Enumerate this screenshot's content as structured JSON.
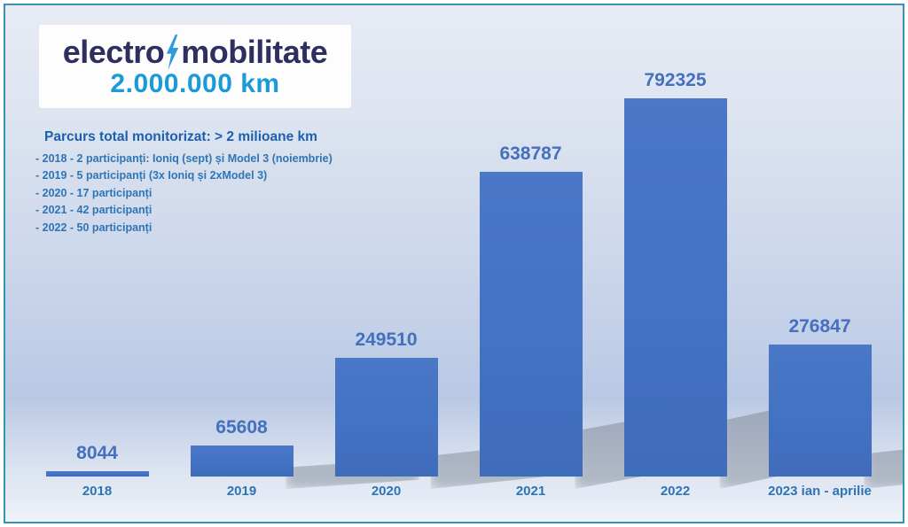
{
  "logo": {
    "brand_prefix": "electro",
    "brand_suffix": "mobilitate",
    "headline": "2.000.000 km"
  },
  "summary": {
    "title": "Parcurs total monitorizat: > 2 milioane km",
    "lines": [
      "- 2018 - 2 participanți: Ioniq (sept) și Model 3 (noiembrie)",
      "- 2019 - 5 participanți (3x Ioniq și 2xModel 3)",
      "- 2020 - 17 participanți",
      "- 2021 - 42 participanți",
      "- 2022 - 50 participanți"
    ]
  },
  "chart_data": {
    "type": "bar",
    "categories": [
      "2018",
      "2019",
      "2020",
      "2021",
      "2022",
      "2023 ian - aprilie"
    ],
    "values": [
      8044,
      65608,
      249510,
      638787,
      792325,
      276847
    ],
    "title": "",
    "xlabel": "",
    "ylabel": "",
    "ylim": [
      0,
      800000
    ],
    "grid": false,
    "legend": false,
    "data_labels": true,
    "bar_color": "#4472c4",
    "value_label_color": "#4470be",
    "category_label_color": "#2e74b5"
  },
  "colors": {
    "border": "#3a93ac",
    "brand_navy": "#2e2f60",
    "brand_bolt_blue": "#2d9cdb",
    "headline_blue": "#1b9ad8",
    "summary_title_blue": "#1d5fae",
    "summary_text_blue": "#2e75b6",
    "background_top": "#e7ebf4",
    "background_mid": "#bfcde7",
    "background_bottom": "#eef2f8"
  }
}
